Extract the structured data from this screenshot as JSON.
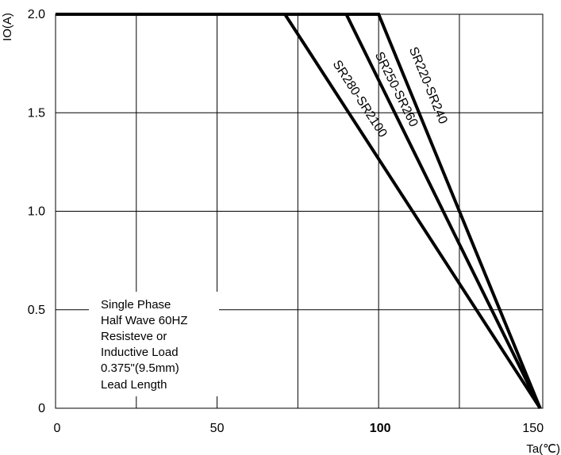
{
  "chart_data": {
    "type": "line",
    "ylabel": "IO(A)",
    "xlabel": "Ta(℃)",
    "xlim": [
      0,
      150
    ],
    "ylim": [
      0,
      2.0
    ],
    "x_ticks": [
      "0",
      "50",
      "100",
      "150"
    ],
    "y_ticks": [
      "0",
      "0.5",
      "1.0",
      "1.5",
      "2.0"
    ],
    "grid": true,
    "series": [
      {
        "name": "SR280-SR2100",
        "x": [
          0,
          71,
          150
        ],
        "y": [
          2.0,
          2.0,
          0
        ]
      },
      {
        "name": "SR250-SR260",
        "x": [
          0,
          90,
          150
        ],
        "y": [
          2.0,
          2.0,
          0
        ]
      },
      {
        "name": "SR220-SR240",
        "x": [
          0,
          100,
          150
        ],
        "y": [
          2.0,
          2.0,
          0
        ]
      }
    ],
    "annotation": [
      "Single Phase",
      "Half Wave 60HZ",
      "Resisteve or",
      "Inductive Load",
      "0.375\"(9.5mm)",
      "Lead Length"
    ]
  }
}
